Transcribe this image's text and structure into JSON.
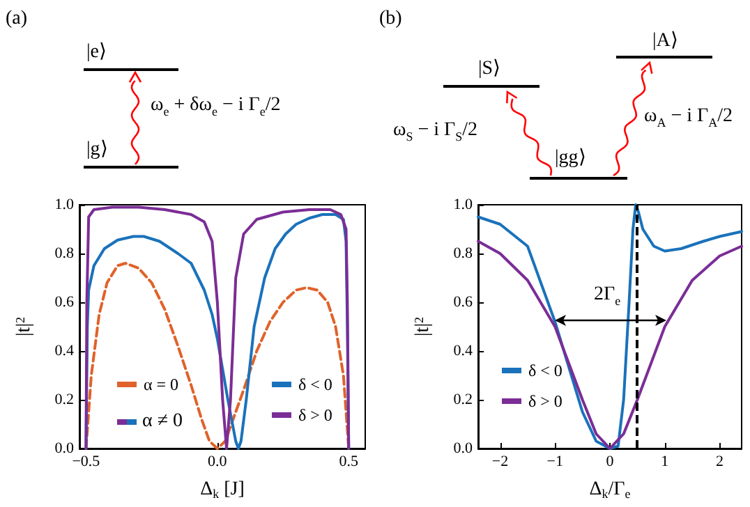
{
  "chart_data": [
    {
      "type": "line",
      "xlabel": "Δ$_{k}$ [J]",
      "ylabel": "|t|$^{2}$",
      "xlim": [
        -0.525,
        0.563
      ],
      "ylim": [
        0,
        1
      ],
      "xticks": [
        {
          "value": -0.5,
          "label": "−0.5"
        },
        {
          "value": 0,
          "label": "0.0"
        },
        {
          "value": 0.5,
          "label": "0.5"
        }
      ],
      "yticks": [
        {
          "value": 0,
          "label": "0.0"
        },
        {
          "value": 0.2,
          "label": "0.2"
        },
        {
          "value": 0.4,
          "label": "0.4"
        },
        {
          "value": 0.6,
          "label": "0.6"
        },
        {
          "value": 0.8,
          "label": "0.8"
        },
        {
          "value": 1,
          "label": "1.0"
        }
      ],
      "grid": false,
      "legend": "bottom",
      "marker": "none",
      "annotations": [
        "(a)",
        "|e⟩",
        "|g⟩",
        "ω$_{e}$ + δω$_{e}$ − i Γ$_{e}$/2",
        "α ≠ 0"
      ],
      "series": [
        {
          "name": "α = 0",
          "color": "#e0622a",
          "line_style": "dashed",
          "x": [
            -0.5,
            -0.48,
            -0.45,
            -0.42,
            -0.38,
            -0.35,
            -0.3,
            -0.25,
            -0.2,
            -0.15,
            -0.1,
            -0.06,
            -0.03,
            0,
            0.03,
            0.06,
            0.1,
            0.15,
            0.2,
            0.25,
            0.3,
            0.34,
            0.38,
            0.42,
            0.45,
            0.48,
            0.5
          ],
          "values": [
            0,
            0.3,
            0.55,
            0.68,
            0.75,
            0.76,
            0.74,
            0.68,
            0.57,
            0.42,
            0.26,
            0.12,
            0.03,
            0,
            0.03,
            0.12,
            0.24,
            0.4,
            0.52,
            0.6,
            0.65,
            0.66,
            0.65,
            0.6,
            0.5,
            0.3,
            0
          ]
        },
        {
          "name": "δ < 0",
          "color": "#1a72bb",
          "line_style": "solid",
          "x": [
            -0.5,
            -0.495,
            -0.49,
            -0.47,
            -0.43,
            -0.38,
            -0.32,
            -0.28,
            -0.22,
            -0.15,
            -0.1,
            -0.05,
            -0.02,
            0,
            0.04,
            0.07,
            0.08,
            0.09,
            0.11,
            0.14,
            0.18,
            0.22,
            0.26,
            0.3,
            0.35,
            0.4,
            0.45,
            0.48,
            0.49,
            0.495,
            0.5
          ],
          "values": [
            0,
            0.5,
            0.65,
            0.75,
            0.82,
            0.855,
            0.87,
            0.87,
            0.85,
            0.8,
            0.76,
            0.65,
            0.55,
            0.45,
            0.2,
            0.03,
            0,
            0.03,
            0.2,
            0.5,
            0.7,
            0.82,
            0.88,
            0.92,
            0.945,
            0.96,
            0.96,
            0.94,
            0.85,
            0.5,
            0
          ]
        },
        {
          "name": "δ > 0",
          "color": "#7b2d96",
          "line_style": "solid",
          "x": [
            -0.5,
            -0.497,
            -0.49,
            -0.47,
            -0.4,
            -0.3,
            -0.2,
            -0.1,
            -0.05,
            -0.02,
            0,
            0.02,
            0.035,
            0.05,
            0.07,
            0.1,
            0.15,
            0.25,
            0.35,
            0.43,
            0.47,
            0.49,
            0.495,
            0.5
          ],
          "values": [
            0,
            0.6,
            0.95,
            0.98,
            0.99,
            0.99,
            0.98,
            0.96,
            0.93,
            0.85,
            0.6,
            0.2,
            0,
            0.2,
            0.7,
            0.88,
            0.94,
            0.97,
            0.98,
            0.98,
            0.96,
            0.9,
            0.6,
            0
          ]
        }
      ]
    },
    {
      "type": "line",
      "xlabel": "Δ$_{k}$/Γ$_{e}$",
      "ylabel": "|t|$^{2}$",
      "xlim": [
        -2.4,
        2.4
      ],
      "ylim": [
        0,
        1
      ],
      "xticks": [
        {
          "value": -2,
          "label": "−2"
        },
        {
          "value": -1,
          "label": "−1"
        },
        0,
        1,
        2
      ],
      "yticks": [
        {
          "value": 0,
          "label": "0.0"
        },
        {
          "value": 0.2,
          "label": "0.2"
        },
        {
          "value": 0.4,
          "label": "0.4"
        },
        {
          "value": 0.6,
          "label": "0.6"
        },
        {
          "value": 0.8,
          "label": "0.8"
        },
        {
          "value": 1,
          "label": "1.0"
        }
      ],
      "grid": false,
      "legend": "bottom left",
      "marker": "none",
      "ref_lines": [
        {
          "axis": "x",
          "value": 0.5,
          "color": "#000000",
          "line_style": "dashed"
        }
      ],
      "annotations": [
        "(b)",
        "|S⟩",
        "|A⟩",
        "|gg⟩",
        "ω$_{S}$ − i Γ$_{S}$/2",
        "ω$_{A}$ − i Γ$_{A}$/2",
        "2Γ$_{e}$"
      ],
      "series": [
        {
          "name": "δ < 0",
          "color": "#1a72bb",
          "line_style": "solid",
          "x": [
            -2.4,
            -2,
            -1.5,
            -1,
            -0.5,
            -0.25,
            0,
            0.15,
            0.25,
            0.35,
            0.42,
            0.47,
            0.52,
            0.6,
            0.8,
            1,
            1.3,
            1.7,
            2,
            2.4
          ],
          "values": [
            0.95,
            0.92,
            0.83,
            0.52,
            0.15,
            0.03,
            0,
            0.01,
            0.2,
            0.6,
            0.9,
            1,
            0.97,
            0.9,
            0.83,
            0.81,
            0.82,
            0.85,
            0.87,
            0.89
          ]
        },
        {
          "name": "δ > 0",
          "color": "#7b2d96",
          "line_style": "solid",
          "x": [
            -2.4,
            -2,
            -1.5,
            -1,
            -0.5,
            -0.25,
            0,
            0.25,
            0.5,
            1,
            1.5,
            2,
            2.4
          ],
          "values": [
            0.85,
            0.8,
            0.69,
            0.5,
            0.2,
            0.06,
            0,
            0.06,
            0.2,
            0.5,
            0.69,
            0.79,
            0.83
          ]
        }
      ]
    }
  ]
}
